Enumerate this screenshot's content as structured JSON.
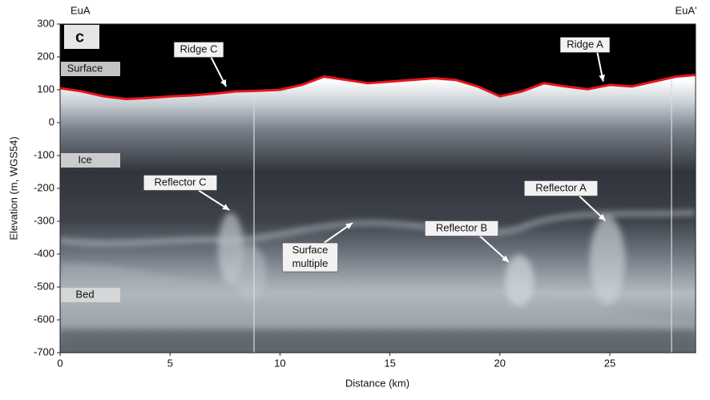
{
  "chart_data": {
    "type": "radargram",
    "panel_label": "c",
    "start_label": "EuA",
    "end_label": "EuA'",
    "x_label": "Distance (km)",
    "y_label": "Elevation (m, WGS54)",
    "xlim": [
      0,
      28.9
    ],
    "ylim": [
      -700,
      300
    ],
    "xticks": [
      0,
      5,
      10,
      15,
      20,
      25
    ],
    "yticks": [
      -700,
      -600,
      -500,
      -400,
      -300,
      -200,
      -100,
      0,
      100,
      200,
      300
    ],
    "surface": {
      "color": "#e8141c",
      "x": [
        0,
        1,
        2,
        3,
        4,
        5,
        6,
        7,
        8,
        9,
        10,
        11,
        12,
        13,
        14,
        15,
        16,
        17,
        18,
        19,
        20,
        21,
        22,
        23,
        24,
        25,
        26,
        27,
        28,
        28.9
      ],
      "values": [
        105,
        95,
        80,
        72,
        75,
        80,
        83,
        88,
        95,
        97,
        100,
        115,
        140,
        130,
        120,
        125,
        130,
        135,
        130,
        110,
        80,
        95,
        120,
        110,
        102,
        115,
        110,
        125,
        140,
        145
      ]
    },
    "zone_labels": [
      "Surface",
      "Ice",
      "Bed"
    ],
    "annotations": [
      {
        "text": "Ridge C",
        "x": 7.55,
        "y": 110
      },
      {
        "text": "Ridge A",
        "x": 24.7,
        "y": 125
      },
      {
        "text": "Reflector C",
        "x": 7.7,
        "y": -266
      },
      {
        "text": "Reflector A",
        "x": 24.8,
        "y": -298
      },
      {
        "text": "Reflector B",
        "x": 20.4,
        "y": -424
      },
      {
        "text": [
          "Surface",
          "multiple"
        ],
        "x": 13.3,
        "y": -305
      }
    ]
  }
}
